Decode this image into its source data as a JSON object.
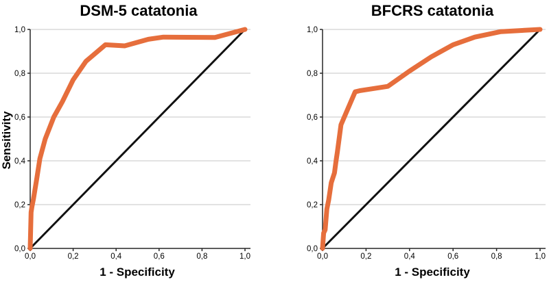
{
  "figure": {
    "background": "#ffffff",
    "text_color": "#000000",
    "axis_color": "#262626",
    "gridline_color": "#c6c6c6"
  },
  "chart_data": [
    {
      "type": "line",
      "title": "DSM-5 catatonia",
      "xlabel": "1 - Specificity",
      "ylabel": "Sensitivity",
      "xlim": [
        0,
        1
      ],
      "ylim": [
        0,
        1
      ],
      "grid": "horizontal",
      "legend": "none",
      "xticks": {
        "values": [
          0,
          0.2,
          0.4,
          0.6,
          0.8,
          1.0
        ],
        "labels": [
          "0,0",
          "0,2",
          "0,4",
          "0,6",
          "0,8",
          "1,0"
        ]
      },
      "yticks": {
        "values": [
          0,
          0.2,
          0.4,
          0.6,
          0.8,
          1.0
        ],
        "labels": [
          "0,0",
          "0,2",
          "0,4",
          "0,6",
          "0,8",
          "1,0"
        ]
      },
      "series": [
        {
          "name": "Reference line",
          "color": "#111111",
          "stroke_width": 3,
          "points": [
            [
              0,
              0
            ],
            [
              1,
              1
            ]
          ]
        },
        {
          "name": "ROC curve",
          "color": "#e66e3c",
          "stroke_width": 7,
          "points": [
            [
              0,
              0
            ],
            [
              0.004,
              0.165
            ],
            [
              0.008,
              0.19
            ],
            [
              0.015,
              0.225
            ],
            [
              0.03,
              0.315
            ],
            [
              0.045,
              0.41
            ],
            [
              0.07,
              0.5
            ],
            [
              0.11,
              0.6
            ],
            [
              0.15,
              0.67
            ],
            [
              0.2,
              0.77
            ],
            [
              0.26,
              0.855
            ],
            [
              0.35,
              0.93
            ],
            [
              0.44,
              0.925
            ],
            [
              0.55,
              0.955
            ],
            [
              0.62,
              0.965
            ],
            [
              0.86,
              0.963
            ],
            [
              1,
              1
            ]
          ]
        }
      ]
    },
    {
      "type": "line",
      "title": "BFCRS catatonia",
      "xlabel": "1 - Specificity",
      "ylabel": "",
      "xlim": [
        0,
        1
      ],
      "ylim": [
        0,
        1
      ],
      "grid": "horizontal",
      "legend": "none",
      "xticks": {
        "values": [
          0,
          0.2,
          0.4,
          0.6,
          0.8,
          1.0
        ],
        "labels": [
          "0,0",
          "0,2",
          "0,4",
          "0,6",
          "0,8",
          "1,0"
        ]
      },
      "yticks": {
        "values": [
          0,
          0.2,
          0.4,
          0.6,
          0.8,
          1.0
        ],
        "labels": [
          "0,0",
          "0,2",
          "0,4",
          "0,6",
          "0,8",
          "1,0"
        ]
      },
      "series": [
        {
          "name": "Reference line",
          "color": "#111111",
          "stroke_width": 3,
          "points": [
            [
              0,
              0
            ],
            [
              1,
              1
            ]
          ]
        },
        {
          "name": "ROC curve",
          "color": "#e66e3c",
          "stroke_width": 7,
          "points": [
            [
              0,
              0
            ],
            [
              0.005,
              0.07
            ],
            [
              0.012,
              0.085
            ],
            [
              0.02,
              0.18
            ],
            [
              0.028,
              0.22
            ],
            [
              0.04,
              0.3
            ],
            [
              0.055,
              0.345
            ],
            [
              0.062,
              0.4
            ],
            [
              0.068,
              0.44
            ],
            [
              0.085,
              0.565
            ],
            [
              0.15,
              0.715
            ],
            [
              0.17,
              0.72
            ],
            [
              0.3,
              0.74
            ],
            [
              0.4,
              0.81
            ],
            [
              0.5,
              0.875
            ],
            [
              0.6,
              0.93
            ],
            [
              0.7,
              0.965
            ],
            [
              0.82,
              0.99
            ],
            [
              1,
              1
            ]
          ]
        }
      ]
    }
  ]
}
